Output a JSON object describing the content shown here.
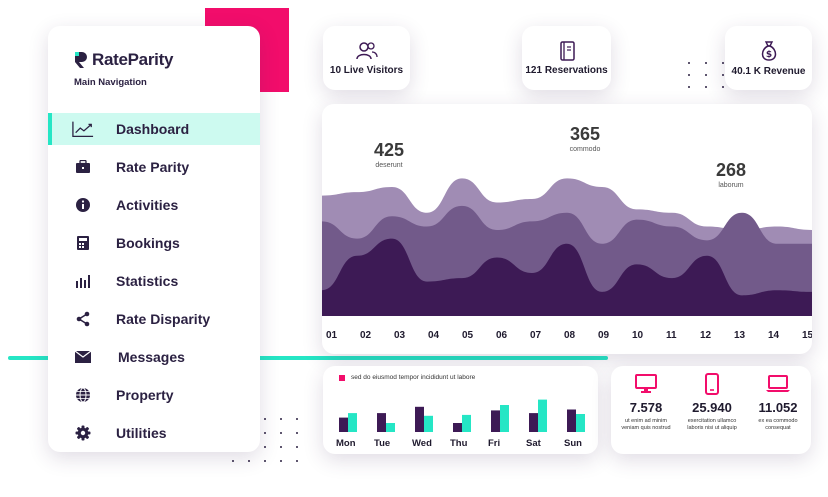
{
  "brand": {
    "name": "RateParity",
    "accent": "#25e6c5",
    "pink": "#f20d6b",
    "dark": "#2b2142"
  },
  "sidebar": {
    "title": "Main Navigation",
    "items": [
      {
        "label": "Dashboard",
        "icon": "line-chart-icon",
        "active": true
      },
      {
        "label": "Rate Parity",
        "icon": "briefcase-icon",
        "active": false
      },
      {
        "label": "Activities",
        "icon": "info-icon",
        "active": false
      },
      {
        "label": "Bookings",
        "icon": "calculator-icon",
        "active": false
      },
      {
        "label": "Statistics",
        "icon": "bar-chart-icon",
        "active": false
      },
      {
        "label": "Rate Disparity",
        "icon": "share-icon",
        "active": false
      },
      {
        "label": "Messages",
        "icon": "envelope-icon",
        "active": false
      },
      {
        "label": "Property",
        "icon": "globe-icon",
        "active": false
      },
      {
        "label": "Utilities",
        "icon": "gear-icon",
        "active": false
      }
    ]
  },
  "stats": [
    {
      "label": "10 Live Visitors",
      "icon": "users-icon"
    },
    {
      "label": "121 Reservations",
      "icon": "notebook-icon"
    },
    {
      "label": "40.1 K Revenue",
      "icon": "money-bag-icon"
    }
  ],
  "chart_data": [
    {
      "type": "area",
      "title": "",
      "x": [
        "01",
        "02",
        "03",
        "04",
        "05",
        "06",
        "07",
        "08",
        "09",
        "10",
        "11",
        "12",
        "13",
        "14",
        "15"
      ],
      "annotations": [
        {
          "value": "425",
          "caption": "deserunt"
        },
        {
          "value": "365",
          "caption": "commodo"
        },
        {
          "value": "268",
          "caption": "laborum"
        }
      ],
      "series": [
        {
          "name": "back",
          "color": "#a08cb4",
          "values": [
            70,
            72,
            75,
            60,
            80,
            66,
            68,
            80,
            75,
            62,
            60,
            52,
            50,
            52,
            50
          ]
        },
        {
          "name": "middle",
          "color": "#725a8a",
          "values": [
            55,
            45,
            58,
            52,
            64,
            50,
            55,
            60,
            42,
            56,
            52,
            44,
            60,
            42,
            42
          ]
        },
        {
          "name": "front",
          "color": "#3d1a55",
          "values": [
            15,
            35,
            45,
            20,
            22,
            34,
            25,
            42,
            14,
            30,
            22,
            35,
            12,
            15,
            14
          ]
        }
      ],
      "ylim": [
        0,
        100
      ]
    },
    {
      "type": "bar",
      "legend": "sed do eiusmod tempor incididunt ut labore",
      "categories": [
        "Mon",
        "Tue",
        "Wed",
        "Thu",
        "Fri",
        "Sat",
        "Sun"
      ],
      "series": [
        {
          "name": "dark",
          "color": "#3d1a55",
          "values": [
            16,
            21,
            28,
            10,
            24,
            21,
            25
          ]
        },
        {
          "name": "cyan",
          "color": "#25e6c5",
          "values": [
            21,
            10,
            18,
            19,
            30,
            36,
            20
          ]
        }
      ],
      "ylim": [
        0,
        40
      ]
    }
  ],
  "devices": [
    {
      "value": "7.578",
      "caption": "ut enim ad minim veniam quis nostrud",
      "icon": "desktop-icon"
    },
    {
      "value": "25.940",
      "caption": "exercitation ullamco laboris nisi ut aliquip",
      "icon": "tablet-icon"
    },
    {
      "value": "11.052",
      "caption": "ex ea commodo consequat",
      "icon": "laptop-icon"
    }
  ]
}
